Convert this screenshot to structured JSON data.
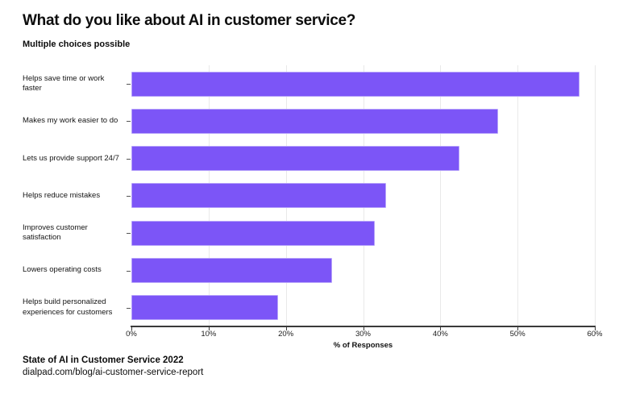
{
  "title": "What do you like about AI in customer service?",
  "subtitle": "Multiple choices possible",
  "source": {
    "line1": "State of AI in Customer Service 2022",
    "line2": "dialpad.com/blog/ai-customer-service-report"
  },
  "chart_data": {
    "type": "bar",
    "orientation": "horizontal",
    "title": "What do you like about AI in customer service?",
    "subtitle": "Multiple choices possible",
    "categories": [
      "Helps save time or work faster",
      "Makes my work easier to do",
      "Lets us provide support 24/7",
      "Helps reduce mistakes",
      "Improves customer satisfaction",
      "Lowers operating costs",
      "Helps build personalized experiences for customers"
    ],
    "values": [
      58,
      47.5,
      42.5,
      33,
      31.5,
      26,
      19
    ],
    "xlabel": "% of Responses",
    "ylabel": "",
    "xlim": [
      0,
      60
    ],
    "xticks": [
      0,
      10,
      20,
      30,
      40,
      50,
      60
    ],
    "xtick_labels": [
      "0%",
      "10%",
      "20%",
      "30%",
      "40%",
      "50%",
      "60%"
    ],
    "grid": true,
    "legend": false,
    "bar_color": "#7C55F7",
    "bar_edge_color": "#B5A1FA",
    "gridline_color": "#E9E9E9",
    "axis_color": "#3A3A3A"
  }
}
